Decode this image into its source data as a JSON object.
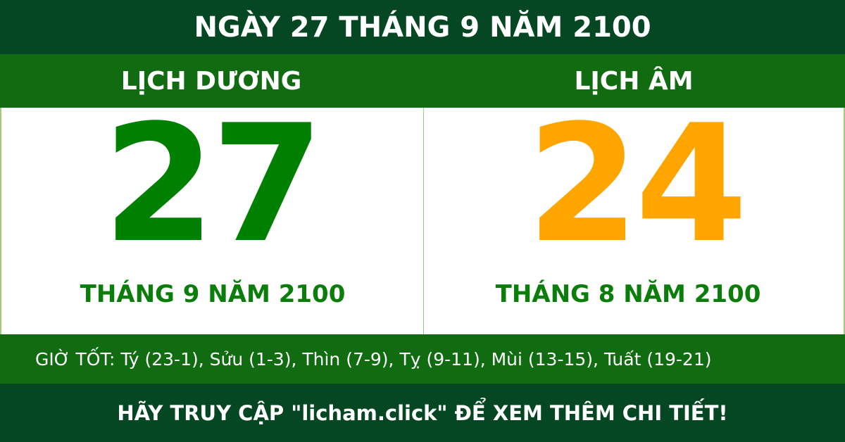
{
  "title": "NGÀY 27 THÁNG 9 NĂM 2100",
  "solar": {
    "label": "LỊCH DƯƠNG",
    "day": "27",
    "month_year": "THÁNG 9 NĂM 2100"
  },
  "lunar": {
    "label": "LỊCH ÂM",
    "day": "24",
    "month_year": "THÁNG 8 NĂM 2100"
  },
  "good_hours": "GIỜ TỐT: Tý (23-1), Sửu (1-3), Thìn (7-9), Tỵ (9-11), Mùi (13-15), Tuất (19-21)",
  "footer": "HÃY TRUY CẬP \"licham.click\" ĐỂ XEM THÊM CHI TIẾT!",
  "colors": {
    "dark_green": "#054722",
    "green": "#116b11",
    "solar_day": "#008000",
    "lunar_day": "#ffa500"
  }
}
